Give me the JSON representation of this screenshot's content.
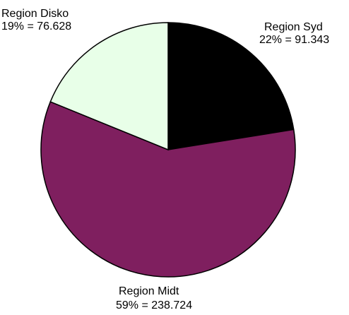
{
  "chart_data": {
    "type": "pie",
    "categories": [
      "Region Syd",
      "Region Midt",
      "Region Disko"
    ],
    "values": [
      91.343,
      238.724,
      76.628
    ],
    "value_labels": [
      "22% = 91.343",
      "59% = 238.724",
      "19% = 76.628"
    ],
    "colors": [
      "#000000",
      "#7f1f5f",
      "#e8ffe8"
    ]
  }
}
